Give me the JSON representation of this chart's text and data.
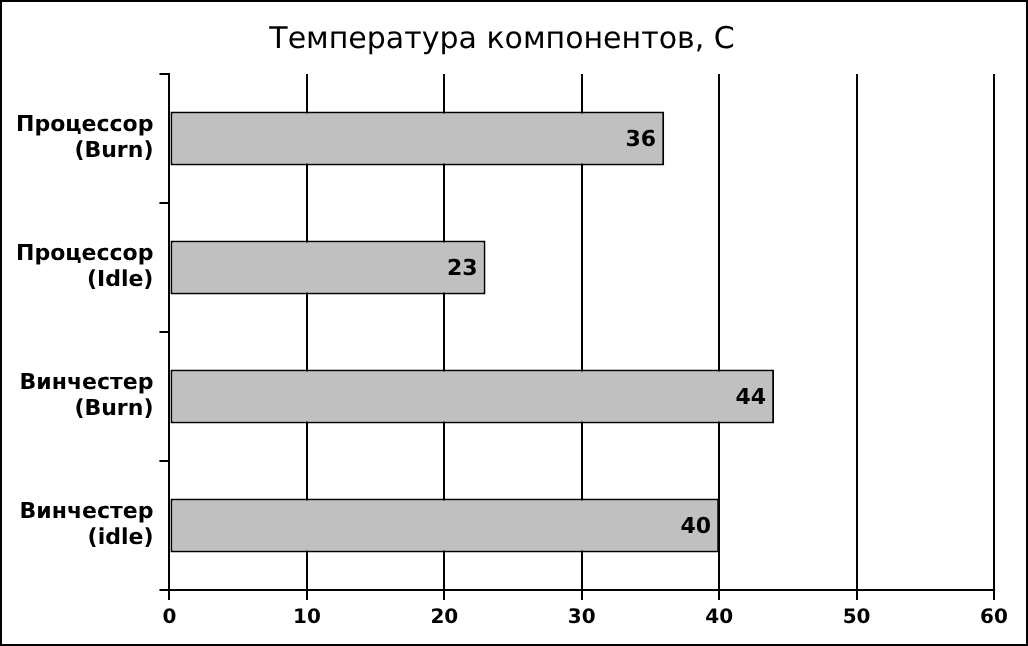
{
  "chart_data": {
    "type": "bar",
    "orientation": "horizontal",
    "title": "Температура компонентов, С",
    "categories": [
      "Процессор (Burn)",
      "Процессор (Idle)",
      "Винчестер (Burn)",
      "Винчестер (idle)"
    ],
    "values": [
      36,
      23,
      44,
      40
    ],
    "color": "#c0c0c0",
    "xlim": [
      0,
      60
    ],
    "xticks": [
      0,
      10,
      20,
      30,
      40,
      50,
      60
    ],
    "grid": "x",
    "data_labels": true,
    "legend": false
  }
}
